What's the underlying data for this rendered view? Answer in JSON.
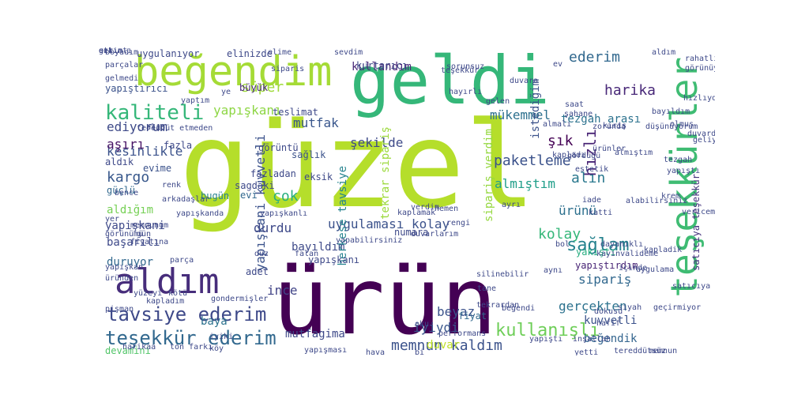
{
  "words": [
    {
      "text": "güzel",
      "color": "#b5de2b",
      "vertical": false
    },
    {
      "text": "ürün",
      "color": "#440154",
      "vertical": false
    },
    {
      "text": "geldi",
      "color": "#35b779",
      "vertical": false
    },
    {
      "text": "teşekkürler",
      "color": "#3fbc73",
      "vertical": true
    },
    {
      "text": "beğendim",
      "color": "#a5db36",
      "vertical": false
    },
    {
      "text": "aldım",
      "color": "#472d7b",
      "vertical": false
    },
    {
      "text": "kaliteli",
      "color": "#35b779",
      "vertical": false
    },
    {
      "text": "tavsiye ederim",
      "color": "#3e4989",
      "vertical": false
    },
    {
      "text": "teşekkür ederim",
      "color": "#31688e",
      "vertical": false
    },
    {
      "text": "kullanışlı",
      "color": "#6ece58",
      "vertical": false
    },
    {
      "text": "sağlam",
      "color": "#26828e",
      "vertical": false
    },
    {
      "text": "mükemmel",
      "color": "#2d708e",
      "vertical": false
    },
    {
      "text": "ediyorum",
      "color": "#3e4a89",
      "vertical": false
    },
    {
      "text": "harika",
      "color": "#482878",
      "vertical": false
    },
    {
      "text": "kargo",
      "color": "#38588c",
      "vertical": false
    },
    {
      "text": "paketleme",
      "color": "#3b528b",
      "vertical": false
    },
    {
      "text": "kolay",
      "color": "#35b779",
      "vertical": false
    },
    {
      "text": "memnun kaldım",
      "color": "#3b528b",
      "vertical": false
    },
    {
      "text": "yapışkani kuvvetli",
      "color": "#3b528b",
      "vertical": true
    },
    {
      "text": "uygulaması kolay",
      "color": "#3b528b",
      "vertical": false
    },
    {
      "text": "hızlı",
      "color": "#482475",
      "vertical": true
    },
    {
      "text": "alın",
      "color": "#2a788e",
      "vertical": false
    },
    {
      "text": "mutfak",
      "color": "#39568c",
      "vertical": false
    },
    {
      "text": "süper",
      "color": "#9fda3a",
      "vertical": false
    },
    {
      "text": "yapışkanı",
      "color": "#8ed645",
      "vertical": false
    },
    {
      "text": "şekilde",
      "color": "#3e4a89",
      "vertical": false
    },
    {
      "text": "almıştım",
      "color": "#1f9e89",
      "vertical": false
    },
    {
      "text": "ederim",
      "color": "#31688e",
      "vertical": false
    },
    {
      "text": "tezgah arası",
      "color": "#2c728e",
      "vertical": false
    },
    {
      "text": "şık",
      "color": "#440154",
      "vertical": false
    },
    {
      "text": "sipariş verdim",
      "color": "#95d840",
      "vertical": true
    },
    {
      "text": "kesinlikle",
      "color": "#3b528b",
      "vertical": false
    },
    {
      "text": "aşırı",
      "color": "#471365",
      "vertical": false
    },
    {
      "text": "durdu",
      "color": "#3e4989",
      "vertical": false
    },
    {
      "text": "ürünü",
      "color": "#2d708e",
      "vertical": false
    },
    {
      "text": "sipariş",
      "color": "#31688e",
      "vertical": false
    },
    {
      "text": "beyaz",
      "color": "#3b528b",
      "vertical": false
    },
    {
      "text": "iyiydi",
      "color": "#39568c",
      "vertical": false
    },
    {
      "text": "duvar",
      "color": "#bddf26",
      "vertical": false
    },
    {
      "text": "gerçekten",
      "color": "#2c728e",
      "vertical": false
    },
    {
      "text": "kuvvetli",
      "color": "#3b528b",
      "vertical": false
    },
    {
      "text": "beğendik",
      "color": "#32648e",
      "vertical": false
    },
    {
      "text": "çok",
      "color": "#29af7f",
      "vertical": false
    },
    {
      "text": "bayıldım",
      "color": "#3e4a89",
      "vertical": false
    },
    {
      "text": "ince",
      "color": "#414487",
      "vertical": false
    },
    {
      "text": "kullandım",
      "color": "#482878",
      "vertical": false
    },
    {
      "text": "istediğim",
      "color": "#3b528b",
      "vertical": true
    },
    {
      "text": "tekrar sipariş",
      "color": "#9bd93c",
      "vertical": true
    },
    {
      "text": "herkese tavsiye",
      "color": "#25838e",
      "vertical": true
    },
    {
      "text": "satıcıya teşekkür",
      "color": "#46337e",
      "vertical": true
    },
    {
      "text": "yapıştırdım",
      "color": "#482475",
      "vertical": false
    },
    {
      "text": "yakıştı",
      "color": "#28ae80",
      "vertical": false
    },
    {
      "text": "güçlü",
      "color": "#31688e",
      "vertical": false
    },
    {
      "text": "aldığım",
      "color": "#75d054",
      "vertical": false
    },
    {
      "text": "yapişkani",
      "color": "#3e4989",
      "vertical": false
    },
    {
      "text": "başarılı",
      "color": "#3e4989",
      "vertical": false
    },
    {
      "text": "duruyor",
      "color": "#31688e",
      "vertical": false
    },
    {
      "text": "mutfagima",
      "color": "#3e4989",
      "vertical": false
    },
    {
      "text": "baya",
      "color": "#2c728e",
      "vertical": false
    },
    {
      "text": "devamini",
      "color": "#52c569",
      "vertical": false
    },
    {
      "text": "fiyat",
      "color": "#31688e",
      "vertical": false
    },
    {
      "text": "yapışkanı",
      "color": "#3e4989",
      "vertical": false
    },
    {
      "text": "yapıştırıcı",
      "color": "#3b528b",
      "vertical": false
    },
    {
      "text": "büyük",
      "color": "#482878",
      "vertical": false
    },
    {
      "text": "teslimat",
      "color": "#3e4989",
      "vertical": false
    },
    {
      "text": "adet",
      "color": "#3e4989",
      "vertical": false
    },
    {
      "text": "görüntü",
      "color": "#3e4989",
      "vertical": false
    },
    {
      "text": "sağlık",
      "color": "#3b528b",
      "vertical": false
    },
    {
      "text": "fazla",
      "color": "#3e4989",
      "vertical": false
    },
    {
      "text": "aldık",
      "color": "#3e4989",
      "vertical": false
    },
    {
      "text": "evime",
      "color": "#3b528b",
      "vertical": false
    },
    {
      "text": "bugün",
      "color": "#26828e",
      "vertical": false
    },
    {
      "text": "sagdaki",
      "color": "#3e4989",
      "vertical": false
    },
    {
      "text": "evi",
      "color": "#31688e",
      "vertical": false
    },
    {
      "text": "fazladan",
      "color": "#3e4989",
      "vertical": false
    },
    {
      "text": "eksik",
      "color": "#3e4989",
      "vertical": false
    },
    {
      "text": "numara",
      "color": "#3e4989",
      "vertical": false
    },
    {
      "text": "boyadım",
      "color": "#3e4989",
      "vertical": false
    },
    {
      "text": "uygulanıyor",
      "color": "#3e4989",
      "vertical": false
    },
    {
      "text": "elinizde",
      "color": "#3e4989",
      "vertical": false
    },
    {
      "text": "elime",
      "color": "#3e4989",
      "vertical": false
    },
    {
      "text": "sevdim",
      "color": "#3e4989",
      "vertical": false
    },
    {
      "text": "siparis",
      "color": "#3e4989",
      "vertical": false
    },
    {
      "text": "kurtarıcı",
      "color": "#3e4989",
      "vertical": false
    },
    {
      "text": "sorunsuz",
      "color": "#3e4989",
      "vertical": false
    },
    {
      "text": "parçalar",
      "color": "#3e4989",
      "vertical": false
    },
    {
      "text": "gelmedi",
      "color": "#3e4989",
      "vertical": false
    },
    {
      "text": "yaptım",
      "color": "#3e4989",
      "vertical": false
    },
    {
      "text": "tereddüt etmeden",
      "color": "#3e4989",
      "vertical": false
    },
    {
      "text": "hızlıydı",
      "color": "#3e4989",
      "vertical": false
    },
    {
      "text": "bayıldım",
      "color": "#3e4989",
      "vertical": false
    },
    {
      "text": "düşünüyorum",
      "color": "#3e4989",
      "vertical": false
    },
    {
      "text": "olmuş",
      "color": "#3e4989",
      "vertical": false
    },
    {
      "text": "saat",
      "color": "#3e4989",
      "vertical": false
    },
    {
      "text": "şahane",
      "color": "#3e4989",
      "vertical": false
    },
    {
      "text": "zorunda",
      "color": "#3e4989",
      "vertical": false
    },
    {
      "text": "kapladı",
      "color": "#3e4989",
      "vertical": false
    },
    {
      "text": "gördüğü",
      "color": "#3e4989",
      "vertical": false
    },
    {
      "text": "almıştım",
      "color": "#3e4989",
      "vertical": false
    },
    {
      "text": "ürünler",
      "color": "#3e4989",
      "vertical": false
    },
    {
      "text": "estetik",
      "color": "#3e4989",
      "vertical": false
    },
    {
      "text": "verdim",
      "color": "#3e4989",
      "vertical": false
    },
    {
      "text": "kaplamak",
      "color": "#3e4989",
      "vertical": false
    },
    {
      "text": "duvarlarım",
      "color": "#3e4989",
      "vertical": false
    },
    {
      "text": "dayanıklı",
      "color": "#3e4989",
      "vertical": false
    },
    {
      "text": "kayınvalideme",
      "color": "#3e4989",
      "vertical": false
    },
    {
      "text": "uygulama",
      "color": "#3e4989",
      "vertical": false
    },
    {
      "text": "silinebilir",
      "color": "#3e4989",
      "vertical": false
    },
    {
      "text": "tane",
      "color": "#3e4989",
      "vertical": false
    },
    {
      "text": "iyiki",
      "color": "#3e4989",
      "vertical": false
    },
    {
      "text": "tekrardan",
      "color": "#3e4989",
      "vertical": false
    },
    {
      "text": "siyah",
      "color": "#3e4989",
      "vertical": false
    },
    {
      "text": "harikaa",
      "color": "#3e4989",
      "vertical": false
    },
    {
      "text": "ton farkı",
      "color": "#3e4989",
      "vertical": false
    },
    {
      "text": "köy",
      "color": "#3e4989",
      "vertical": false
    },
    {
      "text": "yapışması",
      "color": "#3e4989",
      "vertical": false
    },
    {
      "text": "tereddütsüz",
      "color": "#3e4989",
      "vertical": false
    },
    {
      "text": "memnun",
      "color": "#3e4989",
      "vertical": false
    },
    {
      "text": "satıcıya",
      "color": "#3e4989",
      "vertical": false
    },
    {
      "text": "geçirmiyor",
      "color": "#3e4989",
      "vertical": false
    },
    {
      "text": "inşallah",
      "color": "#3e4989",
      "vertical": false
    },
    {
      "text": "yüzeyi",
      "color": "#3e4989",
      "vertical": false
    },
    {
      "text": "kötü",
      "color": "#3e4989",
      "vertical": false
    },
    {
      "text": "gondermişler",
      "color": "#3e4989",
      "vertical": false
    },
    {
      "text": "kapladım",
      "color": "#3e4989",
      "vertical": false
    },
    {
      "text": "yapışkan",
      "color": "#3e4989",
      "vertical": false
    },
    {
      "text": "parça",
      "color": "#3e4989",
      "vertical": false
    },
    {
      "text": "görünümü",
      "color": "#3e4989",
      "vertical": false
    },
    {
      "text": "düz",
      "color": "#3e4989",
      "vertical": false
    },
    {
      "text": "falan",
      "color": "#3e4989",
      "vertical": false
    },
    {
      "text": "yapışkanlı",
      "color": "#3e4989",
      "vertical": false
    },
    {
      "text": "yapışkanda",
      "color": "#3e4989",
      "vertical": false
    },
    {
      "text": "memnunum",
      "color": "#3e4989",
      "vertical": false
    },
    {
      "text": "gün",
      "color": "#3e4989",
      "vertical": false
    },
    {
      "text": "fiyatına",
      "color": "#3e4989",
      "vertical": false
    },
    {
      "text": "arkadaşlar",
      "color": "#3e4989",
      "vertical": false
    },
    {
      "text": "renk",
      "color": "#3e4989",
      "vertical": false
    },
    {
      "text": "bence",
      "color": "#3e4989",
      "vertical": false
    },
    {
      "text": "alıp",
      "color": "#3e4989",
      "vertical": false
    },
    {
      "text": "duvarda",
      "color": "#3e4989",
      "vertical": false
    },
    {
      "text": "ayrı",
      "color": "#3e4989",
      "vertical": false
    },
    {
      "text": "teşekkür",
      "color": "#3e4989",
      "vertical": false
    },
    {
      "text": "hayırlı",
      "color": "#3e4989",
      "vertical": false
    },
    {
      "text": "almalı",
      "color": "#3e4989",
      "vertical": false
    },
    {
      "text": "gelen",
      "color": "#3e4989",
      "vertical": false
    },
    {
      "text": "duvara",
      "color": "#3e4989",
      "vertical": false
    },
    {
      "text": "ev",
      "color": "#3e4989",
      "vertical": false
    },
    {
      "text": "ye",
      "color": "#3e4989",
      "vertical": false
    },
    {
      "text": "hava",
      "color": "#3e4989",
      "vertical": false
    },
    {
      "text": "rengi",
      "color": "#3e4989",
      "vertical": false
    },
    {
      "text": "bi",
      "color": "#3e4989",
      "vertical": false
    },
    {
      "text": "yapıştı",
      "color": "#3e4989",
      "vertical": false
    },
    {
      "text": "beğendi",
      "color": "#3e4989",
      "vertical": false
    },
    {
      "text": "aynı",
      "color": "#3e4989",
      "vertical": false
    },
    {
      "text": "yetti",
      "color": "#3e4989",
      "vertical": false
    },
    {
      "text": "dokusu",
      "color": "#3e4989",
      "vertical": false
    },
    {
      "text": "bol",
      "color": "#3e4989",
      "vertical": false
    },
    {
      "text": "hafif",
      "color": "#3e4989",
      "vertical": false
    },
    {
      "text": "yer",
      "color": "#3e4989",
      "vertical": false
    },
    {
      "text": "üründen",
      "color": "#3e4989",
      "vertical": false
    },
    {
      "text": "pişman",
      "color": "#3e4989",
      "vertical": false
    },
    {
      "text": "oku",
      "color": "#3e4989",
      "vertical": false
    },
    {
      "text": "performans",
      "color": "#3e4989",
      "vertical": false
    },
    {
      "text": "aldım",
      "color": "#3e4989",
      "vertical": false
    },
    {
      "text": "rahatlıkla",
      "color": "#3e4989",
      "vertical": false
    },
    {
      "text": "görünüyor",
      "color": "#3e4989",
      "vertical": false
    },
    {
      "text": "yapabilirsiniz",
      "color": "#3e4989",
      "vertical": false
    },
    {
      "text": "geliyo",
      "color": "#3e4989",
      "vertical": false
    },
    {
      "text": "hemen",
      "color": "#3e4989",
      "vertical": false
    },
    {
      "text": "alabilirsiniz",
      "color": "#3e4989",
      "vertical": false
    },
    {
      "text": "krem",
      "color": "#3e4989",
      "vertical": false
    },
    {
      "text": "tezgah",
      "color": "#3e4989",
      "vertical": false
    },
    {
      "text": "yapıştı",
      "color": "#3e4989",
      "vertical": false
    },
    {
      "text": "kapladik",
      "color": "#3e4989",
      "vertical": false
    },
    {
      "text": "içinde",
      "color": "#3e4989",
      "vertical": false
    },
    {
      "text": "katti",
      "color": "#3e4989",
      "vertical": false
    },
    {
      "text": "iade",
      "color": "#3e4989",
      "vertical": false
    },
    {
      "text": "kiriş",
      "color": "#3e4989",
      "vertical": false
    },
    {
      "text": "vericem",
      "color": "#3e4989",
      "vertical": false
    },
    {
      "text": "geri",
      "color": "#3e4989",
      "vertical": false
    },
    {
      "text": "ettim",
      "color": "#3e4989",
      "vertical": false
    },
    {
      "text": "sıkıntı",
      "color": "#3e4989",
      "vertical": false
    }
  ]
}
